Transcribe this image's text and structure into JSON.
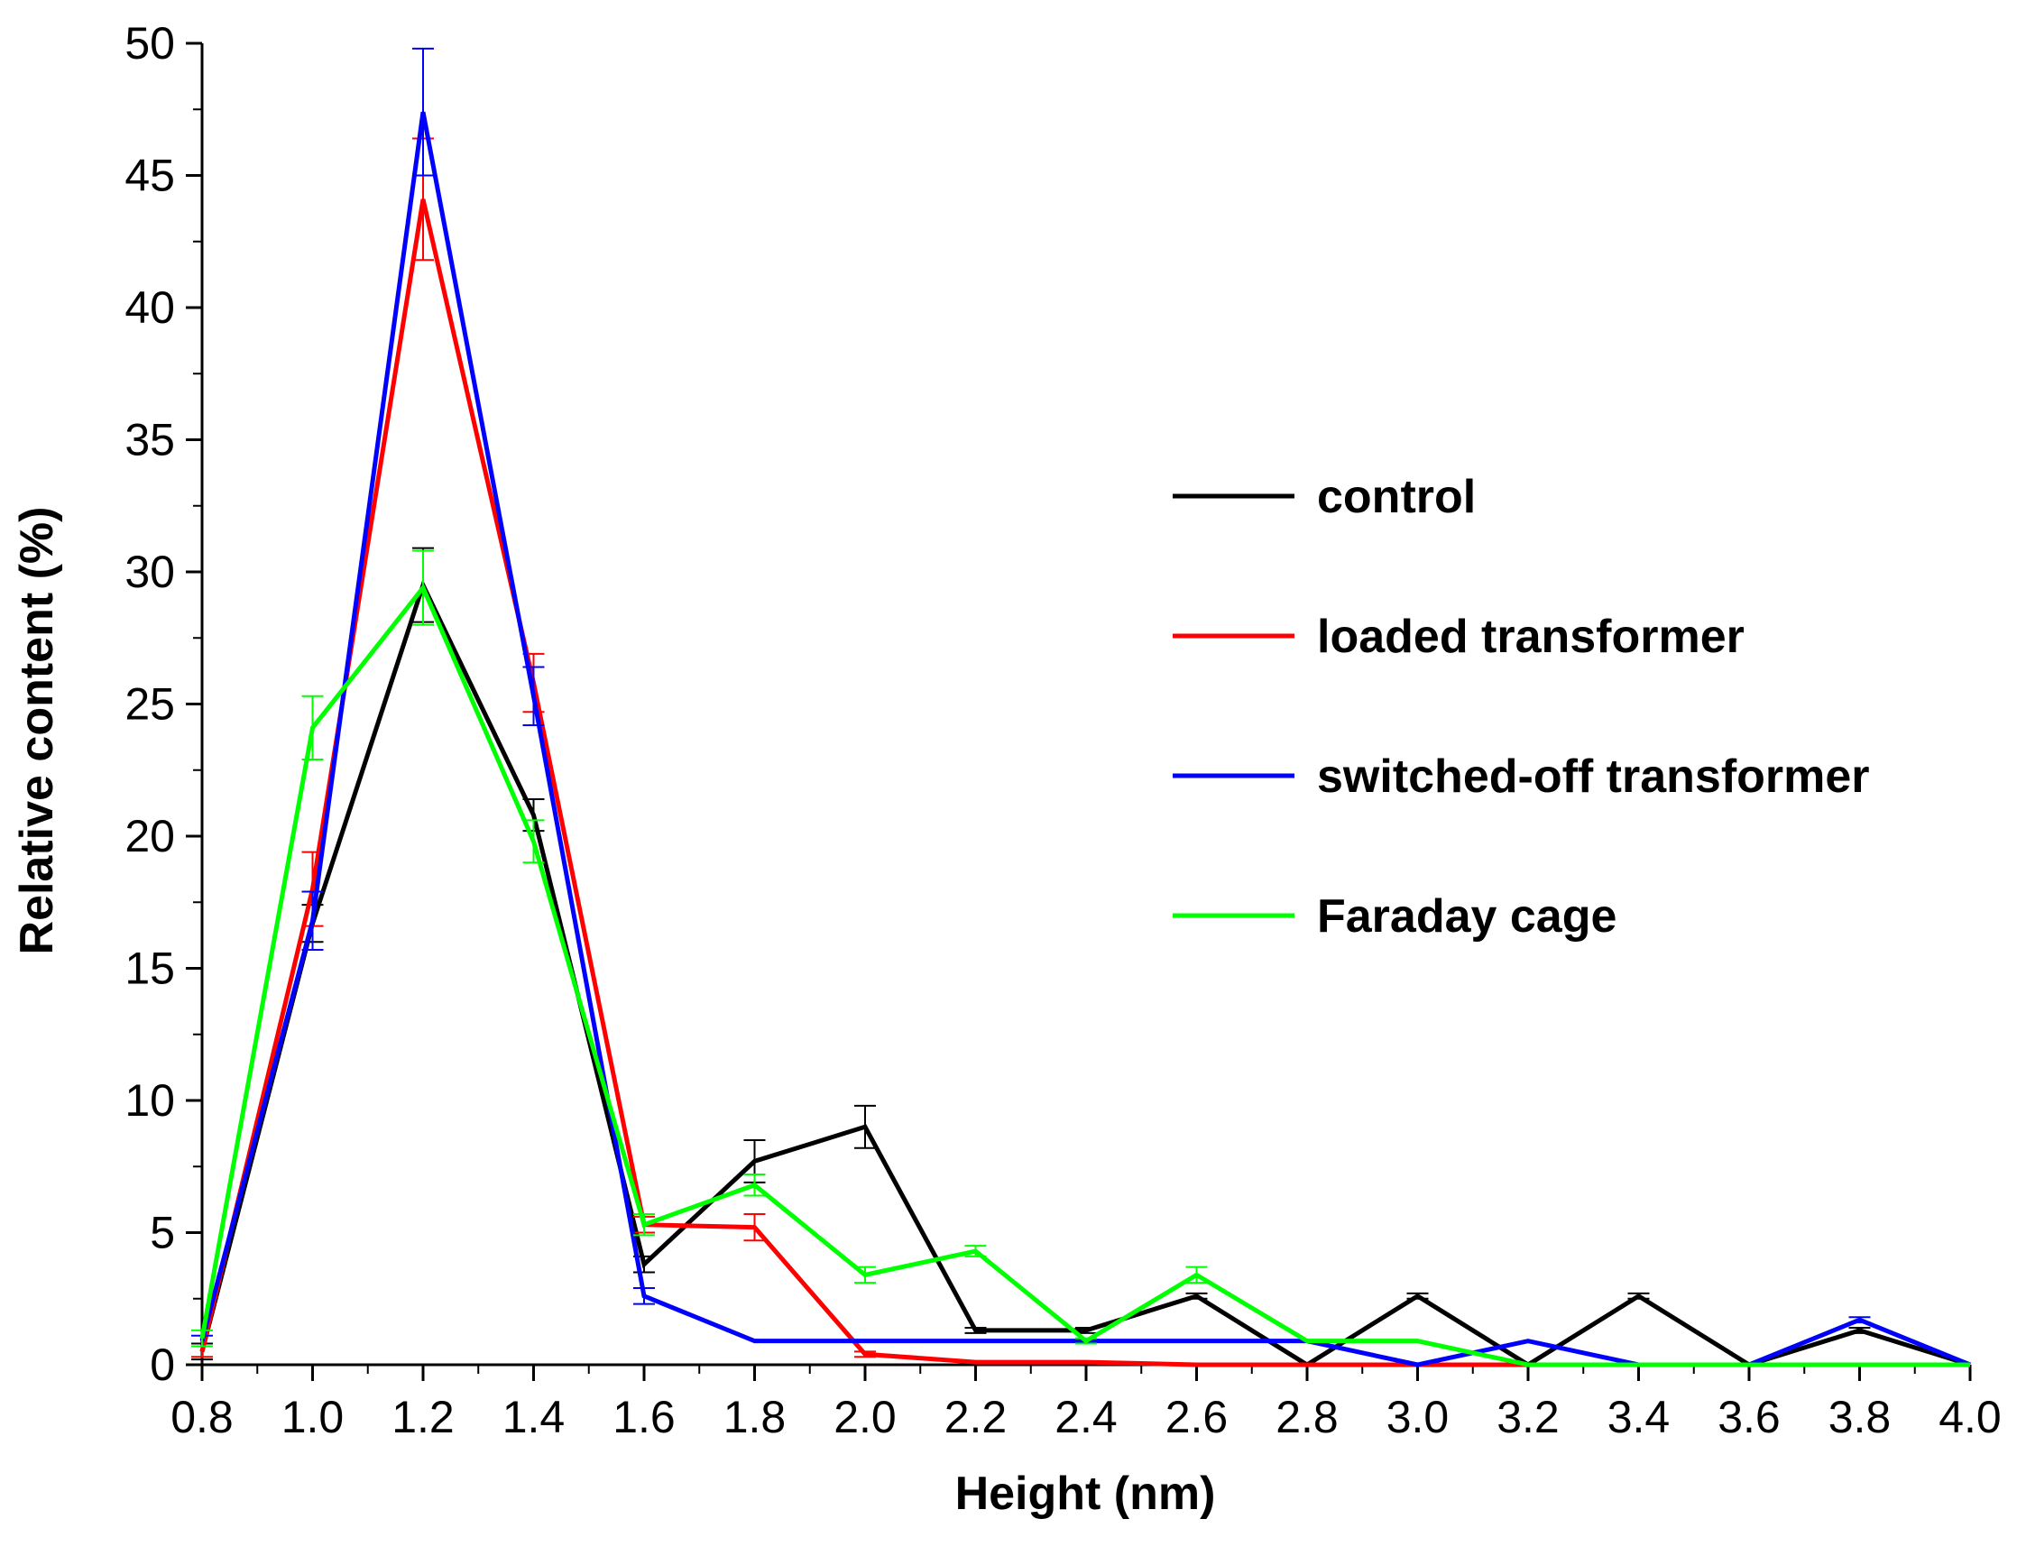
{
  "chart_data": {
    "type": "line",
    "title": "",
    "xlabel": "Height (nm)",
    "ylabel": "Relative content (%)",
    "xlim": [
      0.8,
      4.0
    ],
    "ylim": [
      0,
      50
    ],
    "x_ticks": [
      "0.8",
      "1.0",
      "1.2",
      "1.4",
      "1.6",
      "1.8",
      "2.0",
      "2.2",
      "2.4",
      "2.6",
      "2.8",
      "3.0",
      "3.2",
      "3.4",
      "3.6",
      "3.8",
      "4.0"
    ],
    "y_ticks": [
      "0",
      "5",
      "10",
      "15",
      "20",
      "25",
      "30",
      "35",
      "40",
      "45",
      "50"
    ],
    "x": [
      0.8,
      1.0,
      1.2,
      1.4,
      1.6,
      1.8,
      2.0,
      2.2,
      2.4,
      2.6,
      2.8,
      3.0,
      3.2,
      3.4,
      3.6,
      3.8,
      4.0
    ],
    "legend_position": "right",
    "series": [
      {
        "name": "control",
        "color": "#000000",
        "values": [
          0.5,
          16.7,
          29.5,
          20.8,
          3.8,
          7.7,
          9.0,
          1.3,
          1.3,
          2.6,
          0.0,
          2.6,
          0.0,
          2.6,
          0.0,
          1.3,
          0.0
        ],
        "errors": [
          0.3,
          0.7,
          1.4,
          0.6,
          0.3,
          0.8,
          0.8,
          0.1,
          0.1,
          0.1,
          0.0,
          0.1,
          0.0,
          0.1,
          0.0,
          0.1,
          0.0
        ]
      },
      {
        "name": "loaded transformer",
        "color": "#ff0000",
        "values": [
          0.5,
          18.0,
          44.1,
          25.8,
          5.3,
          5.2,
          0.4,
          0.1,
          0.1,
          0.0,
          0.0,
          0.0,
          0.0,
          0.0,
          0.0,
          0.0,
          0.0
        ],
        "errors": [
          0.2,
          1.4,
          2.3,
          1.1,
          0.3,
          0.5,
          0.1,
          0.0,
          0.0,
          0.0,
          0.0,
          0.0,
          0.0,
          0.0,
          0.0,
          0.0,
          0.0
        ]
      },
      {
        "name": "switched-off transformer",
        "color": "#0000ff",
        "values": [
          0.9,
          16.8,
          47.4,
          25.3,
          2.6,
          0.9,
          0.9,
          0.9,
          0.9,
          0.9,
          0.9,
          0.0,
          0.9,
          0.0,
          0.0,
          1.7,
          0.0
        ],
        "errors": [
          0.2,
          1.1,
          2.4,
          1.1,
          0.3,
          0.0,
          0.0,
          0.0,
          0.0,
          0.0,
          0.0,
          0.0,
          0.0,
          0.0,
          0.0,
          0.1,
          0.0
        ]
      },
      {
        "name": "Faraday cage",
        "color": "#00ff00",
        "values": [
          1.0,
          24.1,
          29.4,
          19.8,
          5.3,
          6.8,
          3.4,
          4.3,
          0.9,
          3.4,
          0.9,
          0.9,
          0.0,
          0.0,
          0.0,
          0.0,
          0.0
        ],
        "errors": [
          0.3,
          1.2,
          1.4,
          0.8,
          0.4,
          0.4,
          0.3,
          0.2,
          0.1,
          0.3,
          0.0,
          0.0,
          0.0,
          0.0,
          0.0,
          0.0,
          0.0
        ]
      }
    ]
  }
}
